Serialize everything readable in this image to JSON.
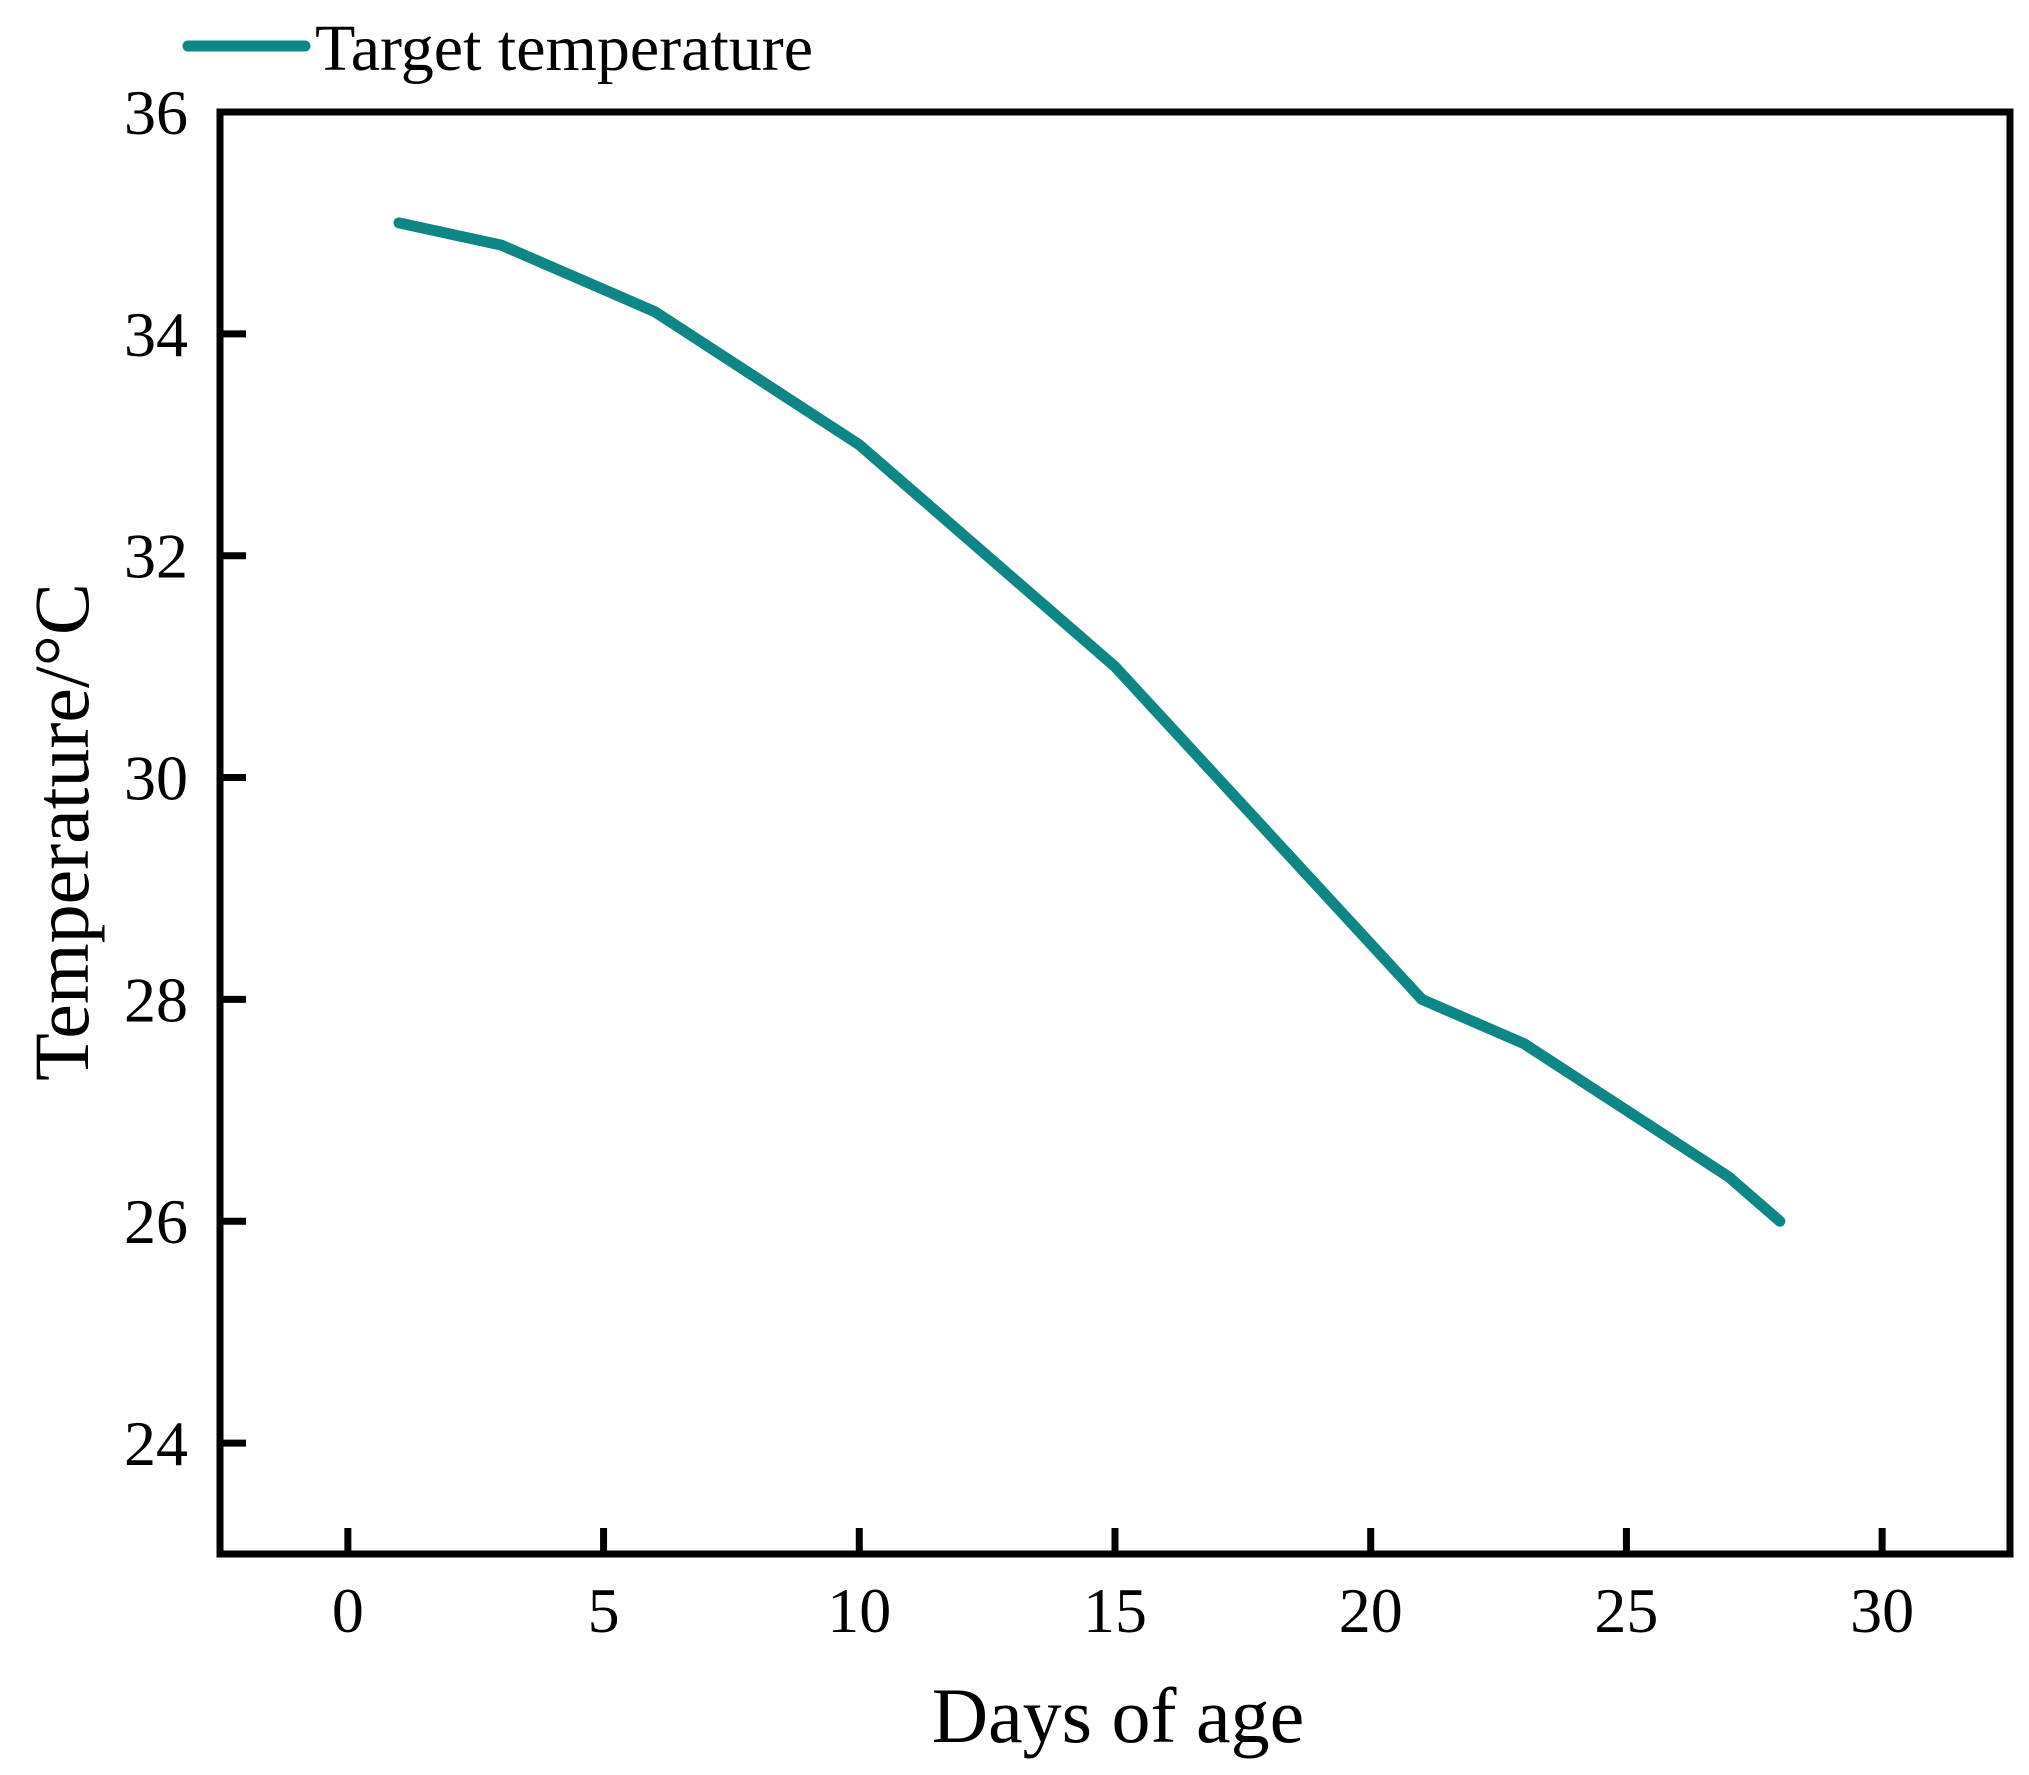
{
  "figure": {
    "background": "#ffffff",
    "frame_color": "#000000"
  },
  "legend": {
    "label": "Target temperature",
    "position": "top-left-above-plot"
  },
  "chart_data": {
    "type": "line",
    "title": "",
    "xlabel": "Days of age",
    "ylabel": "Temperature/°C",
    "series": [
      {
        "name": "Target temperature",
        "color": "#0e8686",
        "line_width": 11,
        "x": [
          1,
          3,
          6,
          10,
          15,
          21,
          23,
          27,
          28
        ],
        "y": [
          35.0,
          34.8,
          34.2,
          33.0,
          31.0,
          28.0,
          27.6,
          26.4,
          26.0
        ]
      }
    ],
    "xlim": [
      -2.5,
      32.5
    ],
    "ylim": [
      23,
      36
    ],
    "xticks": [
      0,
      5,
      10,
      15,
      20,
      25,
      30
    ],
    "yticks": [
      24,
      26,
      28,
      30,
      32,
      34,
      36
    ],
    "grid": false,
    "tick_direction": "in",
    "axis_color": "#000000"
  }
}
